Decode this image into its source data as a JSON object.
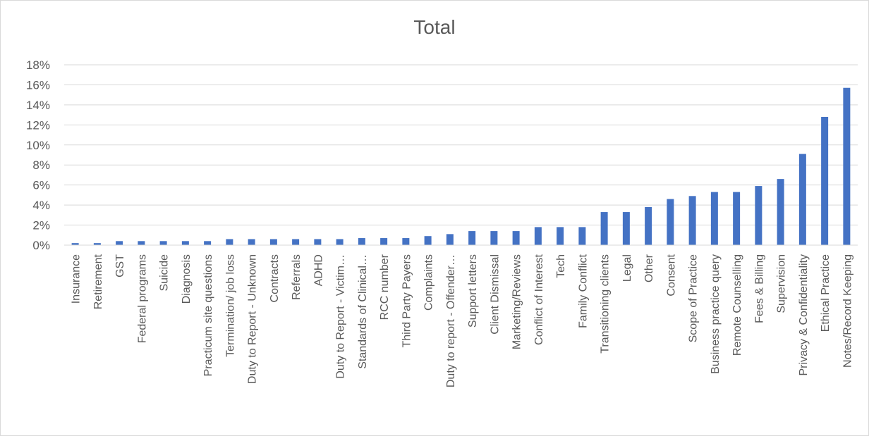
{
  "chart_data": {
    "type": "bar",
    "title": "Total",
    "xlabel": "",
    "ylabel": "",
    "ylim": [
      0,
      0.18
    ],
    "y_ticks": [
      "0%",
      "2%",
      "4%",
      "6%",
      "8%",
      "10%",
      "12%",
      "14%",
      "16%",
      "18%"
    ],
    "grid": true,
    "legend": "none",
    "bar_color": "#4472C4",
    "categories": [
      "Insurance",
      "Retirement",
      "GST",
      "Federal programs",
      "Suicide",
      "Diagnosis",
      "Practicum site questions",
      "Termination/ job loss",
      "Duty to Report - Unknown",
      "Contracts",
      "Referrals",
      "ADHD",
      "Duty to Report - Victim…",
      "Standards of Clinical…",
      "RCC number",
      "Third Party Payers",
      "Complaints",
      "Duty to report - Offender…",
      "Support letters",
      "Client Dismissal",
      "Marketing/Reviews",
      "Conflict of Interest",
      "Tech",
      "Family Conflict",
      "Transitioning clients",
      "Legal",
      "Other",
      "Consent",
      "Scope of Practice",
      "Business practice query",
      "Remote Counselling",
      "Fees & Billing",
      "Supervision",
      "Privacy & Confidentiality",
      "Ethical Practice",
      "Notes/Record Keeping"
    ],
    "values": [
      0.002,
      0.002,
      0.004,
      0.004,
      0.004,
      0.004,
      0.004,
      0.006,
      0.006,
      0.006,
      0.006,
      0.006,
      0.006,
      0.007,
      0.007,
      0.007,
      0.009,
      0.011,
      0.014,
      0.014,
      0.014,
      0.018,
      0.018,
      0.018,
      0.033,
      0.033,
      0.038,
      0.046,
      0.049,
      0.053,
      0.053,
      0.059,
      0.066,
      0.091,
      0.128,
      0.157
    ]
  }
}
